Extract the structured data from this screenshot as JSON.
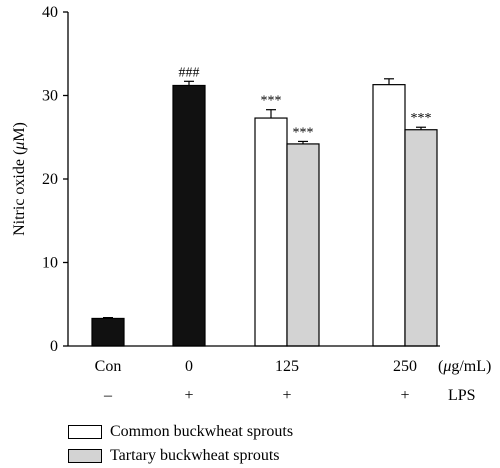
{
  "chart_data": {
    "type": "bar",
    "ylabel": "Nitric oxide (μM)",
    "ylabel_parts": [
      "Nitric oxide (",
      "μ",
      "M)"
    ],
    "ylim": [
      0,
      40
    ],
    "yticks": [
      "0",
      "10",
      "20",
      "30",
      "40"
    ],
    "groups": [
      {
        "label": "Con",
        "lps": "–",
        "bars": [
          {
            "series": "control",
            "value": 3.3,
            "error": 0.1,
            "annotation": ""
          }
        ]
      },
      {
        "label": "0",
        "lps": "+",
        "bars": [
          {
            "series": "control",
            "value": 31.2,
            "error": 0.5,
            "annotation": "###"
          }
        ]
      },
      {
        "label": "125",
        "lps": "+",
        "bars": [
          {
            "series": "common",
            "value": 27.3,
            "error": 1.0,
            "annotation": "***"
          },
          {
            "series": "tartary",
            "value": 24.2,
            "error": 0.3,
            "annotation": "***"
          }
        ]
      },
      {
        "label": "250",
        "lps": "+",
        "bars": [
          {
            "series": "common",
            "value": 31.3,
            "error": 0.7,
            "annotation": ""
          },
          {
            "series": "tartary",
            "value": 25.9,
            "error": 0.3,
            "annotation": "***"
          }
        ]
      }
    ],
    "unit_label": "(μg/mL)",
    "lps_label": "LPS",
    "series": [
      {
        "key": "control",
        "color": "#111111"
      },
      {
        "key": "common",
        "name": "Common buckwheat sprouts",
        "color": "#ffffff"
      },
      {
        "key": "tartary",
        "name": "Tartary buckwheat sprouts",
        "color": "#d3d3d3"
      }
    ]
  }
}
